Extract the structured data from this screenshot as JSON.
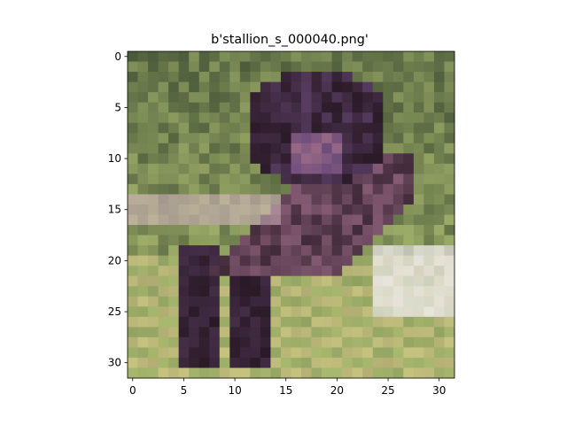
{
  "figure": {
    "title": "b'stallion_s_000040.png'",
    "image_size": [
      32,
      32
    ],
    "x_ticks": [
      0,
      5,
      10,
      15,
      20,
      25,
      30
    ],
    "y_ticks": [
      0,
      5,
      10,
      15,
      20,
      25,
      30
    ],
    "image_description_colors": {
      "grass_dark": "#4b5a3a",
      "grass_light": "#a8b86e",
      "horse_dark": "#2a1a26",
      "horse_purple": "#6a4a7a",
      "horse_mauve": "#9a6a86",
      "sand": "#d8c88a",
      "highlight": "#eeeaea"
    }
  }
}
